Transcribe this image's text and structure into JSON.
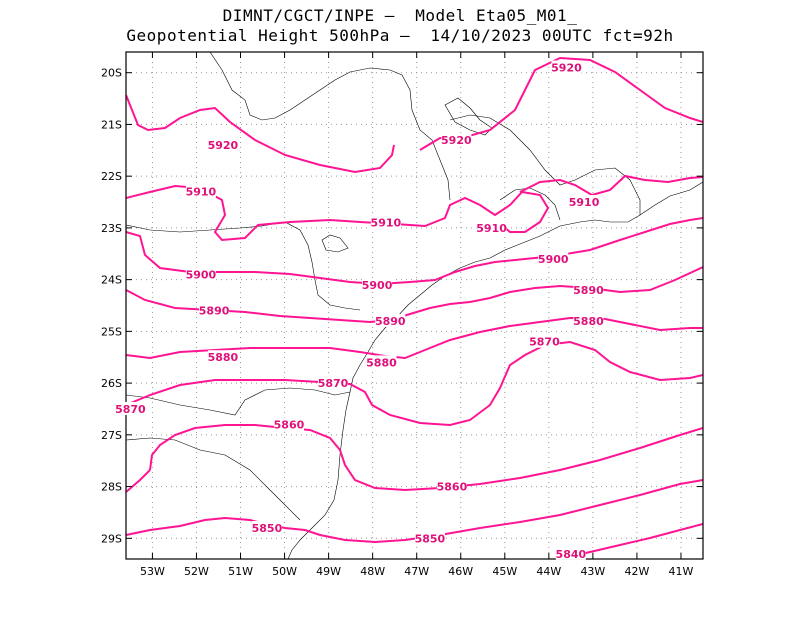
{
  "header": {
    "line1": "DIMNT/CGCT/INPE –  Model Eta05_M01_",
    "line2": "Geopotential Height 500hPa –  14/10/2023 00UTC fct=92h"
  },
  "axes": {
    "lon_labels": [
      "53W",
      "52W",
      "51W",
      "50W",
      "49W",
      "48W",
      "47W",
      "46W",
      "45W",
      "44W",
      "43W",
      "42W",
      "41W"
    ],
    "lat_labels": [
      "20S",
      "21S",
      "22S",
      "23S",
      "24S",
      "25S",
      "26S",
      "27S",
      "28S",
      "29S"
    ]
  },
  "colors": {
    "contour": "#ff1493",
    "coast": "#000000",
    "grid": "#999999"
  },
  "contours": [
    {
      "value": "5920",
      "labels": [
        {
          "text": "5920",
          "lon": -51.4,
          "lat": -21.4
        },
        {
          "text": "5920",
          "lon": -46.1,
          "lat": -21.3
        },
        {
          "text": "5920",
          "lon": -43.6,
          "lat": -19.9
        }
      ]
    },
    {
      "value": "5910",
      "labels": [
        {
          "text": "5910",
          "lon": -51.9,
          "lat": -22.3
        },
        {
          "text": "5910",
          "lon": -47.7,
          "lat": -22.9
        },
        {
          "text": "5910",
          "lon": -45.3,
          "lat": -23.0
        },
        {
          "text": "5910",
          "lon": -43.2,
          "lat": -22.5
        }
      ]
    },
    {
      "value": "5900",
      "labels": [
        {
          "text": "5900",
          "lon": -51.9,
          "lat": -23.9
        },
        {
          "text": "5900",
          "lon": -47.9,
          "lat": -24.1
        },
        {
          "text": "5900",
          "lon": -43.9,
          "lat": -23.6
        }
      ]
    },
    {
      "value": "5890",
      "labels": [
        {
          "text": "5890",
          "lon": -51.6,
          "lat": -24.6
        },
        {
          "text": "5890",
          "lon": -47.6,
          "lat": -24.8
        },
        {
          "text": "5890",
          "lon": -43.1,
          "lat": -24.2
        }
      ]
    },
    {
      "value": "5880",
      "labels": [
        {
          "text": "5880",
          "lon": -51.4,
          "lat": -25.5
        },
        {
          "text": "5880",
          "lon": -47.8,
          "lat": -25.6
        },
        {
          "text": "5880",
          "lon": -43.1,
          "lat": -24.8
        }
      ]
    },
    {
      "value": "5870",
      "labels": [
        {
          "text": "5870",
          "lon": -53.5,
          "lat": -26.5
        },
        {
          "text": "5870",
          "lon": -48.9,
          "lat": -26.0
        },
        {
          "text": "5870",
          "lon": -44.1,
          "lat": -25.2
        }
      ]
    },
    {
      "value": "5860",
      "labels": [
        {
          "text": "5860",
          "lon": -49.9,
          "lat": -26.8
        },
        {
          "text": "5860",
          "lon": -46.2,
          "lat": -28.0
        }
      ]
    },
    {
      "value": "5850",
      "labels": [
        {
          "text": "5850",
          "lon": -50.4,
          "lat": -28.8
        },
        {
          "text": "5850",
          "lon": -46.7,
          "lat": -29.0
        }
      ]
    },
    {
      "value": "5840",
      "labels": [
        {
          "text": "5840",
          "lon": -43.5,
          "lat": -29.3
        }
      ]
    }
  ]
}
